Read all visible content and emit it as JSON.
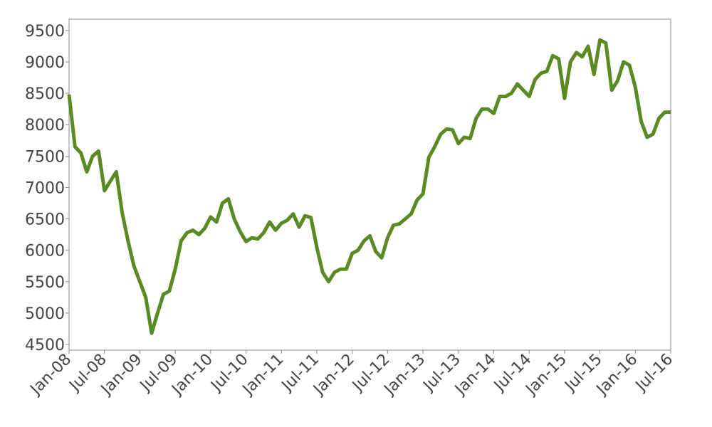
{
  "chart_data": {
    "type": "line",
    "x": [
      "Jan-08",
      "Feb-08",
      "Mar-08",
      "Apr-08",
      "May-08",
      "Jun-08",
      "Jul-08",
      "Aug-08",
      "Sep-08",
      "Oct-08",
      "Nov-08",
      "Dec-08",
      "Jan-09",
      "Feb-09",
      "Mar-09",
      "Apr-09",
      "May-09",
      "Jun-09",
      "Jul-09",
      "Aug-09",
      "Sep-09",
      "Oct-09",
      "Nov-09",
      "Dec-09",
      "Jan-10",
      "Feb-10",
      "Mar-10",
      "Apr-10",
      "May-10",
      "Jun-10",
      "Jul-10",
      "Aug-10",
      "Sep-10",
      "Oct-10",
      "Nov-10",
      "Dec-10",
      "Jan-11",
      "Feb-11",
      "Mar-11",
      "Apr-11",
      "May-11",
      "Jun-11",
      "Jul-11",
      "Aug-11",
      "Sep-11",
      "Oct-11",
      "Nov-11",
      "Dec-11",
      "Jan-12",
      "Feb-12",
      "Mar-12",
      "Apr-12",
      "May-12",
      "Jun-12",
      "Jul-12",
      "Aug-12",
      "Sep-12",
      "Oct-12",
      "Nov-12",
      "Dec-12",
      "Jan-13",
      "Feb-13",
      "Mar-13",
      "Apr-13",
      "May-13",
      "Jun-13",
      "Jul-13",
      "Aug-13",
      "Sep-13",
      "Oct-13",
      "Nov-13",
      "Dec-13",
      "Jan-14",
      "Feb-14",
      "Mar-14",
      "Apr-14",
      "May-14",
      "Jun-14",
      "Jul-14",
      "Aug-14",
      "Sep-14",
      "Oct-14",
      "Nov-14",
      "Dec-14",
      "Jan-15",
      "Feb-15",
      "Mar-15",
      "Apr-15",
      "May-15",
      "Jun-15",
      "Jul-15",
      "Aug-15",
      "Sep-15",
      "Oct-15",
      "Nov-15",
      "Dec-15",
      "Jan-16",
      "Feb-16",
      "Mar-16",
      "Apr-16",
      "May-16",
      "Jun-16",
      "Jul-16"
    ],
    "series": [
      {
        "color": "#5a8a23",
        "values": [
          8480,
          7650,
          7550,
          7250,
          7500,
          7580,
          6950,
          7100,
          7250,
          6600,
          6150,
          5750,
          5500,
          5250,
          4680,
          5000,
          5300,
          5350,
          5700,
          6150,
          6280,
          6320,
          6250,
          6350,
          6530,
          6450,
          6750,
          6820,
          6500,
          6300,
          6140,
          6200,
          6180,
          6280,
          6450,
          6320,
          6430,
          6480,
          6580,
          6370,
          6550,
          6520,
          6050,
          5650,
          5500,
          5650,
          5700,
          5700,
          5950,
          6000,
          6150,
          6230,
          5980,
          5880,
          6200,
          6400,
          6420,
          6500,
          6580,
          6800,
          6900,
          7480,
          7650,
          7850,
          7930,
          7920,
          7700,
          7800,
          7780,
          8100,
          8250,
          8250,
          8180,
          8450,
          8450,
          8500,
          8650,
          8550,
          8450,
          8720,
          8820,
          8850,
          9100,
          9050,
          8420,
          9000,
          9150,
          9080,
          9250,
          8800,
          9350,
          9300,
          8550,
          8700,
          9000,
          8950,
          8600,
          8050,
          7800,
          7850,
          8100,
          8200,
          8200
        ]
      }
    ],
    "xticks": [
      "Jan-08",
      "Jul-08",
      "Jan-09",
      "Jul-09",
      "Jan-10",
      "Jul-10",
      "Jan-11",
      "Jul-11",
      "Jan-12",
      "Jul-12",
      "Jan-13",
      "Jul-13",
      "Jan-14",
      "Jul-14",
      "Jan-15",
      "Jul-15",
      "Jan-16",
      "Jul-16"
    ],
    "ylim": [
      4410,
      9680
    ],
    "yticks": [
      4500,
      5000,
      5500,
      6000,
      6500,
      7000,
      7500,
      8000,
      8500,
      9000,
      9500
    ]
  }
}
